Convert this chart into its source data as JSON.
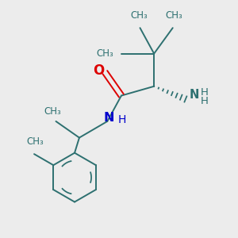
{
  "background_color": "#ececec",
  "bond_color": "#2d7070",
  "bond_width": 1.4,
  "o_color": "#dd0000",
  "n_color": "#0000cc",
  "nh2_color": "#2d7070",
  "figsize": [
    3.0,
    3.0
  ],
  "dpi": 100,
  "xlim": [
    0,
    10
  ],
  "ylim": [
    0,
    10
  ]
}
